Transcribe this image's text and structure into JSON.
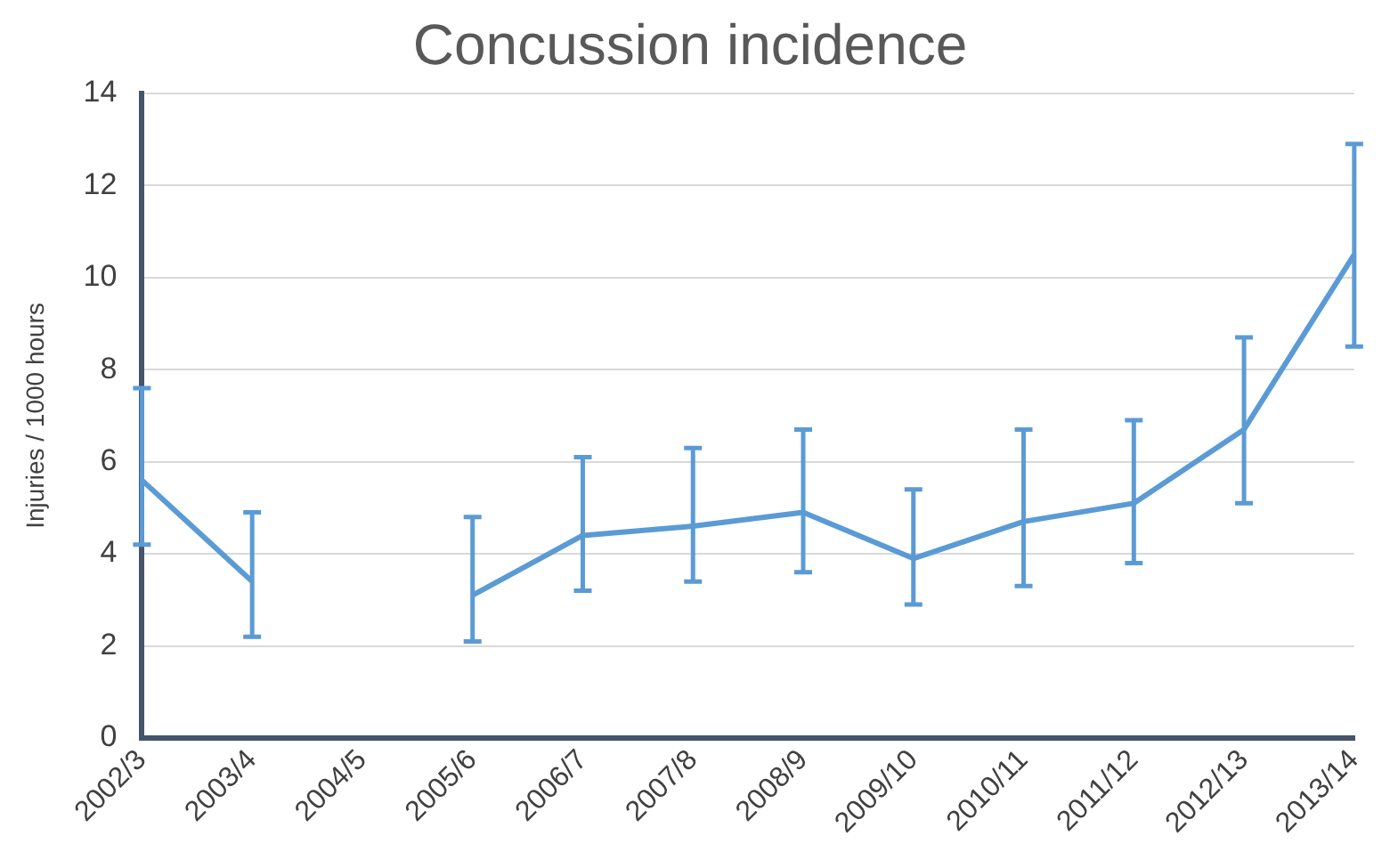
{
  "chart_data": {
    "type": "line",
    "title": "Concussion incidence",
    "ylabel": "Injuries / 1000 hours",
    "categories": [
      "2002/3",
      "2003/4",
      "2004/5",
      "2005/6",
      "2006/7",
      "2007/8",
      "2008/9",
      "2009/10",
      "2010/11",
      "2011/12",
      "2012/13",
      "2013/14"
    ],
    "series": [
      {
        "color": "#5b9bd5",
        "values": [
          5.6,
          3.4,
          null,
          3.1,
          4.4,
          4.6,
          4.9,
          3.9,
          4.7,
          5.1,
          6.7,
          10.5
        ],
        "errors": [
          [
            4.2,
            7.6
          ],
          [
            2.2,
            4.9
          ],
          null,
          [
            2.1,
            4.8
          ],
          [
            3.2,
            6.1
          ],
          [
            3.4,
            6.3
          ],
          [
            3.6,
            6.7
          ],
          [
            2.9,
            5.4
          ],
          [
            3.3,
            6.7
          ],
          [
            3.8,
            6.9
          ],
          [
            5.1,
            8.7
          ],
          [
            8.5,
            12.9
          ]
        ]
      }
    ],
    "ylim": [
      0,
      14
    ],
    "yticks": [
      0,
      2,
      4,
      6,
      8,
      10,
      12,
      14
    ],
    "grid": "y",
    "legend": false,
    "marker": "none",
    "line_style": "solid"
  }
}
